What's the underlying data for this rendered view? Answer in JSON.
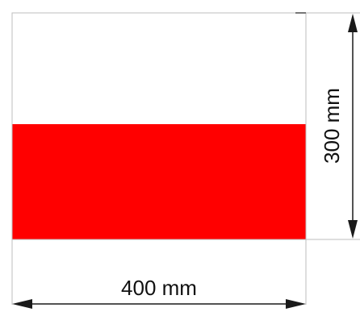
{
  "colors": {
    "top_band": "#ffffff",
    "bottom_band": "#ff0000",
    "outline": "#bdbdbd",
    "dimension_line": "#1a1a1a",
    "text": "#111111"
  },
  "dimensions": {
    "width_label": "400 mm",
    "height_label": "300 mm"
  }
}
